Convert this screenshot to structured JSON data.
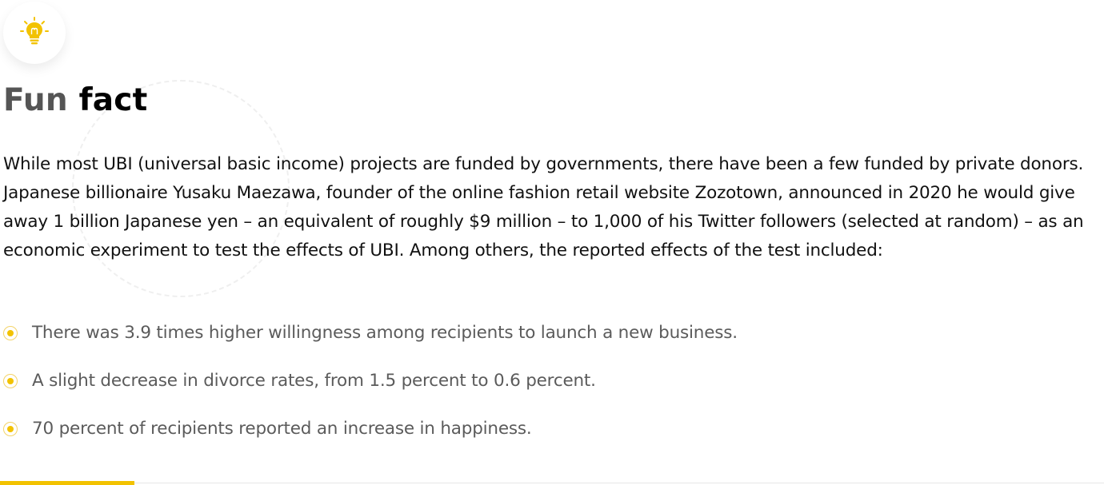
{
  "header": {
    "icon": "lightbulb-icon",
    "title_part1": "Fun",
    "title_part2": "fact"
  },
  "body": {
    "paragraph": "While most UBI (universal basic income) projects are funded by governments, there have been a few funded by private donors. Japanese billionaire Yusaku Maezawa, founder of the online fashion retail website Zozotown, announced in 2020 he would give away 1 billion Japanese yen – an equivalent of roughly $9 million – to 1,000 of his Twitter followers (selected at random) – as an economic experiment to test the effects of UBI. Among others, the reported effects of the test included:"
  },
  "facts": [
    {
      "text": "There was 3.9 times higher willingness among recipients to launch a new business."
    },
    {
      "text": "A slight decrease in divorce rates, from 1.5 percent to 0.6 percent."
    },
    {
      "text": "70 percent of recipients reported an increase in happiness."
    }
  ],
  "colors": {
    "accent": "#f2c200",
    "title_light": "#555555",
    "title_dark": "#000000",
    "list_text": "#5b5b5b"
  }
}
